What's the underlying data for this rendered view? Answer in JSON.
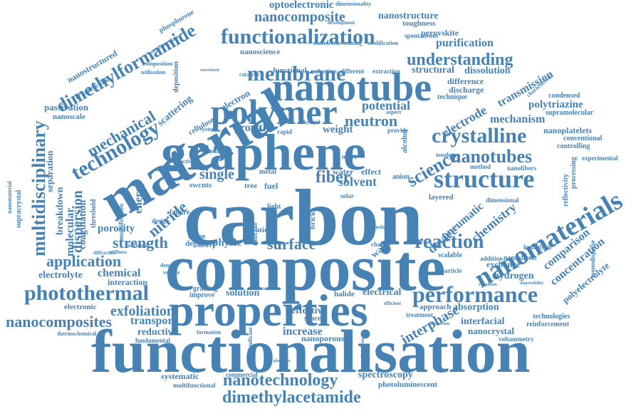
{
  "color": "#4682b4",
  "words": {
    "carbon": "carbon",
    "composite": "composite",
    "functionalisation": "functionalisation",
    "properties": "properties",
    "graphene": "graphene",
    "material": "material",
    "nanotube": "nanotube",
    "polymer": "polymer",
    "membrane": "membrane",
    "nanomaterials": "nanomaterials",
    "performance": "performance",
    "photothermal": "photothermal",
    "structure": "structure",
    "nanocomposite": "nanocomposite",
    "functionalization": "functionalization",
    "dimethylformamide": "dimethylformamide",
    "multidisciplinary": "multidisciplinary",
    "technology": "technology",
    "nanotechnology": "nanotechnology",
    "dimethylacetamide": "dimethylacetamide",
    "nanocomposites": "nanocomposites",
    "exfoliation": "exfoliation",
    "application": "application",
    "strength": "strength",
    "reaction": "reaction",
    "crystalline": "crystalline",
    "nanotubes": "nanotubes",
    "understanding": "understanding",
    "science": "science",
    "optoelectronic": "optoelectronic",
    "nanostructure": "nanostructure",
    "mechanical": "mechanical",
    "dispersion": "dispersion",
    "nitride": "nitride",
    "surface": "surface",
    "fiber": "fiber",
    "solvent": "solvent",
    "potential": "potential",
    "neutron": "neutron",
    "growth": "growth",
    "weight": "weight",
    "single": "single",
    "chemical": "chemical",
    "electrolyte": "electrolyte",
    "porosity": "porosity",
    "molecular": "molecular",
    "energy": "energy",
    "increase": "increase",
    "solution": "solution",
    "effective": "effective",
    "electrical": "electrical",
    "interphase": "interphase",
    "absorption": "absorption",
    "interfacial": "interfacial",
    "nanocrystal": "nanocrystal",
    "transport": "transport",
    "reductive": "reductive",
    "spectroscopy": "spectroscopy",
    "photoluminescent": "photoluminescent",
    "device": "device",
    "pneumatic": "pneumatic",
    "chemistry": "chemistry",
    "comparison": "comparison",
    "concentration": "concentration",
    "hydrogen": "hydrogen",
    "exchange": "exchange",
    "mechanism": "mechanism",
    "polytriazine": "polytriazine",
    "transmission": "transmission",
    "electrode": "electrode",
    "dissolution": "dissolution",
    "structural": "structural",
    "purification": "purification",
    "perovskite": "perovskite",
    "toughness": "toughness",
    "dimensionality": "dimensionality",
    "nanoscience": "nanoscience",
    "scattering": "scattering",
    "passivation": "passivation",
    "nanoscale": "nanoscale",
    "breakdown": "breakdown",
    "coagulation": "coagulation",
    "separation": "separation",
    "electronic": "electronic",
    "water": "water",
    "effect": "effect",
    "walled": "walled",
    "physic": "physic",
    "degree": "degree",
    "silane": "silane",
    "ratio": "ratio",
    "fuel": "fuel",
    "swcnts": "swcnts",
    "tree": "tree",
    "metal": "metal",
    "imide": "imide",
    "interaction": "interaction",
    "grafting": "grafting",
    "improve": "improve",
    "nanoporous": "nanoporous",
    "spacer": "spacer",
    "halide": "halide",
    "approach": "approach",
    "treatment": "treatment",
    "technologies": "technologies",
    "reinforcement": "reinforcement",
    "voltammetry": "voltammetry",
    "systematic": "systematic",
    "commercial": "commercial",
    "multifunctional": "multifunctional",
    "fundamental": "fundamental",
    "thermochemical": "thermochemical",
    "formation": "formation",
    "nanostructured": "nanostructured",
    "phosphorene": "phosphorene",
    "composition": "composition",
    "framework": "framework",
    "utilisation": "utilisation",
    "deposition": "deposition",
    "cellulose": "cellulose",
    "electron": "electron",
    "functional": "functional",
    "reduction": "reduction",
    "different": "different",
    "extraction": "extraction",
    "catalytic": "catalytic",
    "difference": "difference",
    "discharge": "discharge",
    "technique": "technique",
    "aspect": "aspect",
    "provide": "provide",
    "rapid": "rapid",
    "hybrid": "hybrid",
    "system": "system",
    "tougher": "tougher",
    "method": "method",
    "nanoplatelets": "nanoplatelets",
    "conventional": "conventional",
    "controlling": "controlling",
    "processing": "processing",
    "experimental": "experimental",
    "reflectivity": "reflectivity",
    "supramolecular": "supramolecular",
    "condensed": "condensed",
    "nanofibers": "nanofibers",
    "nanosheets": "nanosheets",
    "hydrolysis": "hydrolysis",
    "addition": "addition",
    "particle": "particle",
    "scalable": "scalable",
    "polyelectrolyte": "polyelectrolyte",
    "monodisperse": "monodisperse",
    "dimensional": "dimensional",
    "layered": "layered",
    "anion": "anion",
    "alcohol": "alcohol",
    "nacre": "nacre",
    "reactive": "reactive",
    "failure": "failure",
    "torsional": "torsional",
    "design": "design",
    "density": "density",
    "vehicle": "vehicle",
    "heavy": "heavy",
    "light": "light",
    "mortar": "mortar",
    "brick": "brick",
    "fibre": "fibre",
    "solar": "solar",
    "hole": "hole",
    "charge": "charge",
    "stiffness": "stiffness",
    "diffraction": "diffraction",
    "supracrystal": "supracrystal",
    "nanomaterial": "nanomaterial",
    "threshold": "threshold",
    "tensile": "tensile",
    "emulsification": "emulsification",
    "nanocarbon": "nanocarbon",
    "swimming": "swimming",
    "modification": "modification",
    "development": "development",
    "spontaneous": "spontaneous",
    "methacrylate": "methacrylate",
    "correlated": "correlated",
    "characteristic": "characteristic",
    "dispersibility": "dispersibility",
    "relaxation": "relaxation",
    "efficient": "efficient",
    "depletion": "depletion",
    "tunable": "tunable",
    "significant": "significant",
    "platinum": "platinum",
    "detection": "detection",
    "production": "production"
  }
}
